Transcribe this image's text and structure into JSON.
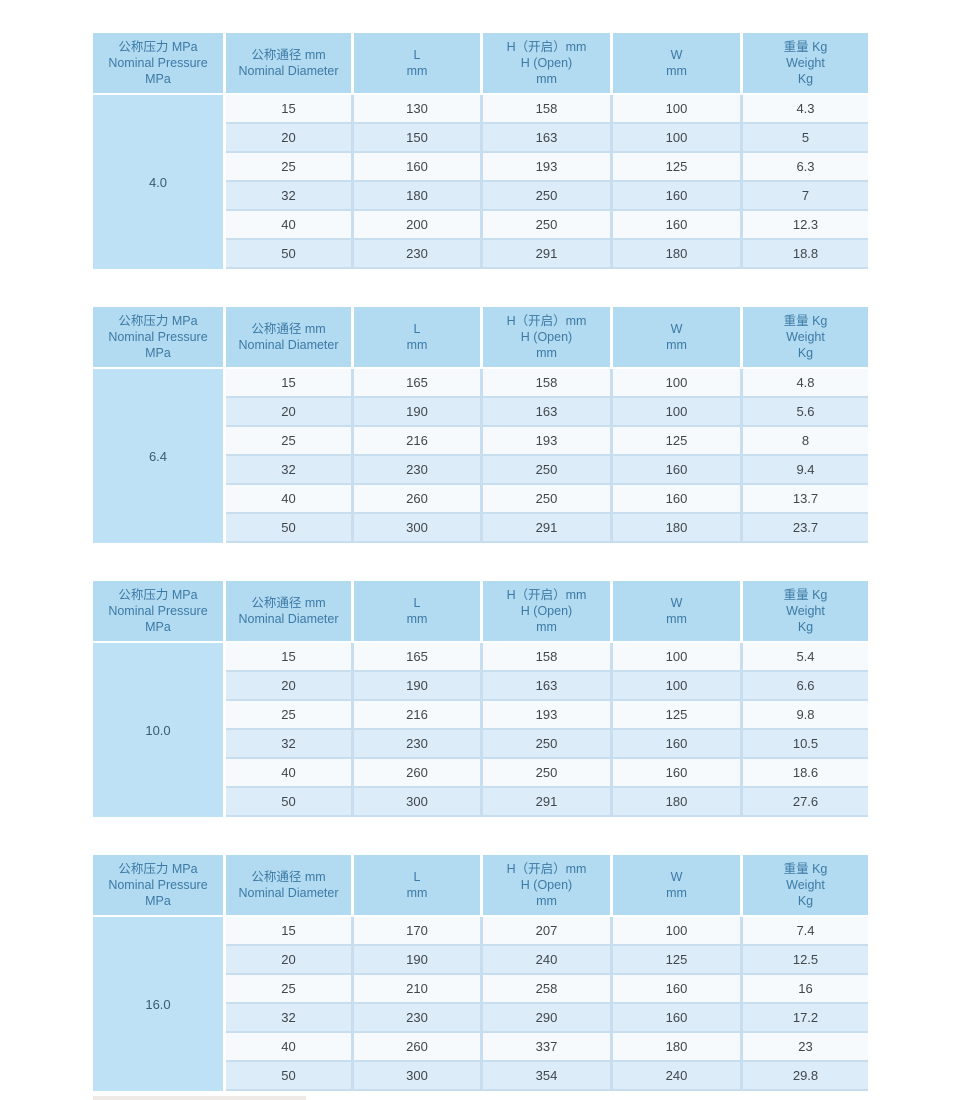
{
  "colors": {
    "page_bg": "#ffffff",
    "header_bg": "#b2daf0",
    "header_text": "#3c7aa6",
    "pressure_cell_bg": "#bfe1f5",
    "pressure_cell_text": "#3c5a70",
    "row_light_bg": "#f6fafd",
    "row_blue_bg": "#dcecf8",
    "separator": "#c8deee",
    "data_text": "#41464b"
  },
  "header": {
    "pressure": {
      "lines": [
        "公称压力 MPa",
        "Nominal Pressure",
        "MPa"
      ]
    },
    "columns": [
      {
        "id": "nominal-diameter",
        "lines": [
          "公称通径 mm",
          "Nominal Diameter"
        ]
      },
      {
        "id": "length-l",
        "lines": [
          "L",
          "mm"
        ]
      },
      {
        "id": "height-open",
        "lines": [
          "H（开启）mm",
          "H (Open)",
          "mm"
        ]
      },
      {
        "id": "width-w",
        "lines": [
          "W",
          "mm"
        ]
      },
      {
        "id": "weight",
        "lines": [
          "重量 Kg",
          "Weight",
          "Kg"
        ]
      }
    ]
  },
  "tables": [
    {
      "pressure": "4.0",
      "rows": [
        [
          "15",
          "130",
          "158",
          "100",
          "4.3"
        ],
        [
          "20",
          "150",
          "163",
          "100",
          "5"
        ],
        [
          "25",
          "160",
          "193",
          "125",
          "6.3"
        ],
        [
          "32",
          "180",
          "250",
          "160",
          "7"
        ],
        [
          "40",
          "200",
          "250",
          "160",
          "12.3"
        ],
        [
          "50",
          "230",
          "291",
          "180",
          "18.8"
        ]
      ]
    },
    {
      "pressure": "6.4",
      "rows": [
        [
          "15",
          "165",
          "158",
          "100",
          "4.8"
        ],
        [
          "20",
          "190",
          "163",
          "100",
          "5.6"
        ],
        [
          "25",
          "216",
          "193",
          "125",
          "8"
        ],
        [
          "32",
          "230",
          "250",
          "160",
          "9.4"
        ],
        [
          "40",
          "260",
          "250",
          "160",
          "13.7"
        ],
        [
          "50",
          "300",
          "291",
          "180",
          "23.7"
        ]
      ]
    },
    {
      "pressure": "10.0",
      "rows": [
        [
          "15",
          "165",
          "158",
          "100",
          "5.4"
        ],
        [
          "20",
          "190",
          "163",
          "100",
          "6.6"
        ],
        [
          "25",
          "216",
          "193",
          "125",
          "9.8"
        ],
        [
          "32",
          "230",
          "250",
          "160",
          "10.5"
        ],
        [
          "40",
          "260",
          "250",
          "160",
          "18.6"
        ],
        [
          "50",
          "300",
          "291",
          "180",
          "27.6"
        ]
      ]
    },
    {
      "pressure": "16.0",
      "rows": [
        [
          "15",
          "170",
          "207",
          "100",
          "7.4"
        ],
        [
          "20",
          "190",
          "240",
          "125",
          "12.5"
        ],
        [
          "25",
          "210",
          "258",
          "160",
          "16"
        ],
        [
          "32",
          "230",
          "290",
          "160",
          "17.2"
        ],
        [
          "40",
          "260",
          "337",
          "180",
          "23"
        ],
        [
          "50",
          "300",
          "354",
          "240",
          "29.8"
        ]
      ]
    }
  ]
}
